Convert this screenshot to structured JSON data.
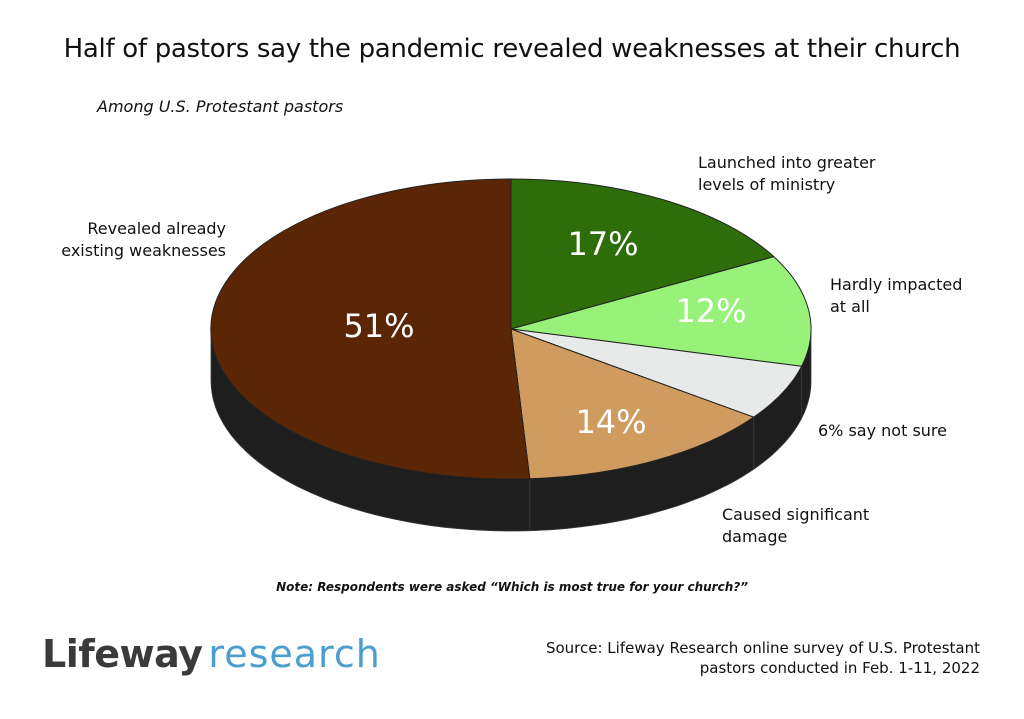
{
  "title": "Half of pastors say the pandemic revealed weaknesses at their church",
  "subtitle": "Among U.S. Protestant pastors",
  "chart_data": {
    "type": "pie",
    "title": "Half of pastors say the pandemic revealed weaknesses at their church",
    "subtitle": "Among U.S. Protestant pastors",
    "slices": [
      {
        "label": "Launched into greater levels of ministry",
        "value": 17,
        "value_label": "17%",
        "color": "#2e6e0a",
        "text_color": "#ffffff"
      },
      {
        "label": "Hardly impacted at all",
        "value": 12,
        "value_label": "12%",
        "color": "#98f27a",
        "text_color": "#ffffff"
      },
      {
        "label": "6% say not sure",
        "value": 6,
        "value_label": "",
        "color": "#e8eaea",
        "text_color": "#111111"
      },
      {
        "label": "Caused significant damage",
        "value": 14,
        "value_label": "14%",
        "color": "#cf9b5e",
        "text_color": "#ffffff"
      },
      {
        "label": "Revealed already existing weaknesses",
        "value": 51,
        "value_label": "51%",
        "color": "#5a2606",
        "text_color": "#ffffff"
      }
    ],
    "start_position": "top, clockwise",
    "style": "3D pie"
  },
  "note": "Note: Respondents were asked “Which is most true for your church?”",
  "logo": {
    "brand": "Lifeway",
    "suffix": "research"
  },
  "source": "Source: Lifeway Research online survey of U.S. Protestant pastors conducted in Feb. 1-11, 2022"
}
